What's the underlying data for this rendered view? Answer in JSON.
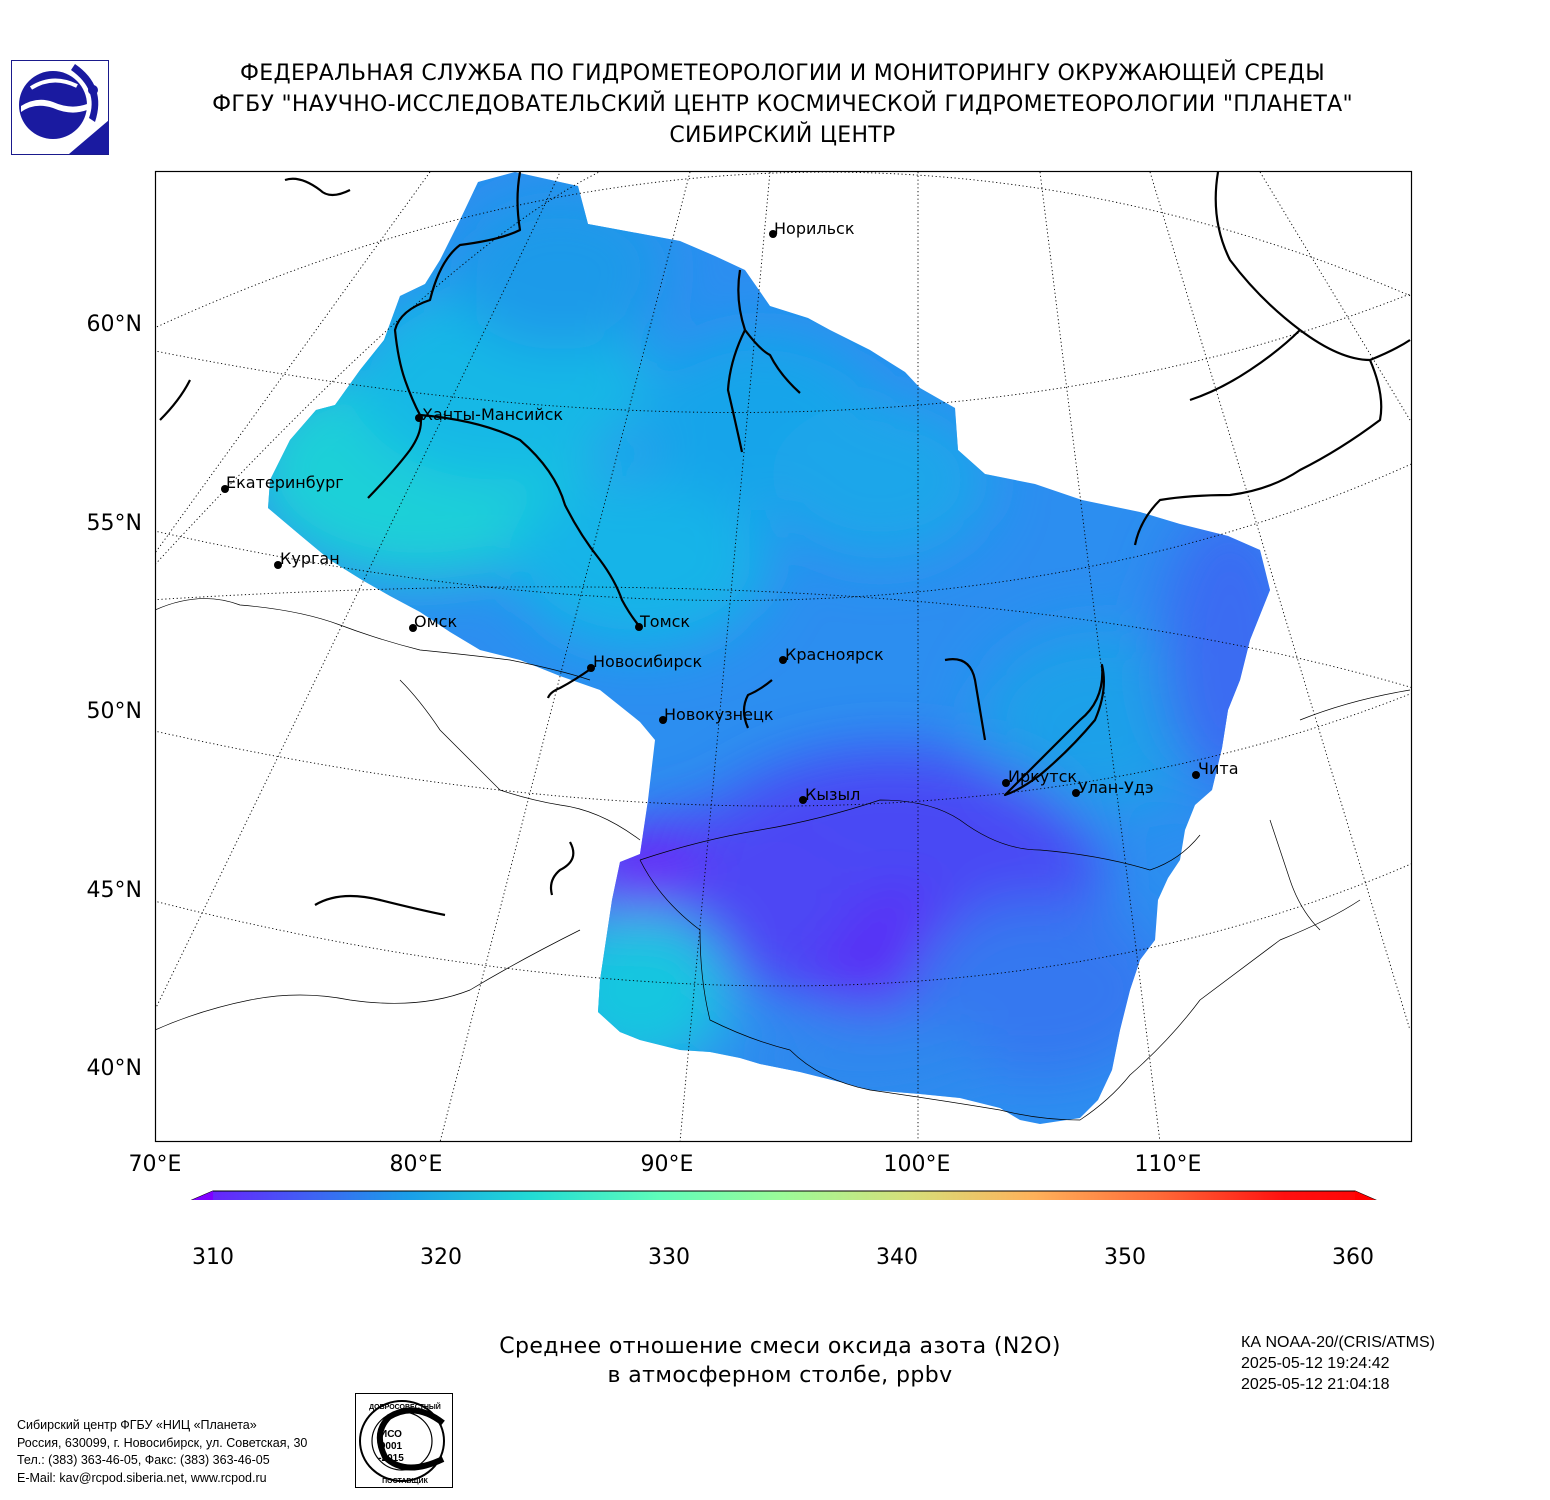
{
  "header": {
    "line1": "ФЕДЕРАЛЬНАЯ СЛУЖБА ПО ГИДРОМЕТЕОРОЛОГИИ И МОНИТОРИНГУ ОКРУЖАЮЩЕЙ СРЕДЫ",
    "line2": "ФГБУ \"НАУЧНО-ИССЛЕДОВАТЕЛЬСКИЙ ЦЕНТР КОСМИЧЕСКОЙ ГИДРОМЕТЕОРОЛОГИИ \"ПЛАНЕТА\"",
    "line3": "СИБИРСКИЙ ЦЕНТР"
  },
  "logo_icon": "roshydromet-logo-icon",
  "map": {
    "lat_labels": [
      "60°N",
      "55°N",
      "50°N",
      "45°N",
      "40°N"
    ],
    "lon_labels": [
      "70°E",
      "80°E",
      "90°E",
      "100°E",
      "110°E"
    ],
    "cities": [
      "Норильск",
      "Ханты-Мансийск",
      "Екатеринбург",
      "Курган",
      "Омск",
      "Томск",
      "Новосибирск",
      "Красноярск",
      "Новокузнецк",
      "Кызыл",
      "Иркутск",
      "Улан-Удэ",
      "Чита"
    ]
  },
  "colorbar": {
    "ticks": [
      "310",
      "320",
      "330",
      "340",
      "350",
      "360"
    ],
    "min": 310,
    "max": 360,
    "colors": [
      "#7f00ff",
      "#4a50f7",
      "#1a9ee9",
      "#22dcd4",
      "#5ffcba",
      "#9cfb98",
      "#d6df7a",
      "#ffb15a",
      "#ff6a38",
      "#ff1010",
      "#ff0000"
    ]
  },
  "caption": {
    "line1": "Среднее отношение смеси оксида азота (N2O)",
    "line2": "в атмосферном столбе, ppbv"
  },
  "satellite": {
    "name": "КА NOAA-20/(CRIS/ATMS)",
    "time_start": "2025-05-12 19:24:42",
    "time_end": "2025-05-12 21:04:18"
  },
  "org": {
    "line1": "Сибирский центр ФГБУ «НИЦ «Планета»",
    "line2": "Россия, 630099, г. Новосибирск, ул. Советская, 30",
    "line3": "Тел.: (383) 363-46-05, Факс: (383) 363-46-05",
    "line4": "E-Mail: kav@rcpod.siberia.net, www.rcpod.ru"
  },
  "iso_badge": {
    "top_text": "ДОБРОСОВЕСТНЫЙ",
    "line1": "ИСО",
    "line2": "9001",
    "line3": "-2015",
    "bottom_text": "ПОСТАВЩИК"
  }
}
